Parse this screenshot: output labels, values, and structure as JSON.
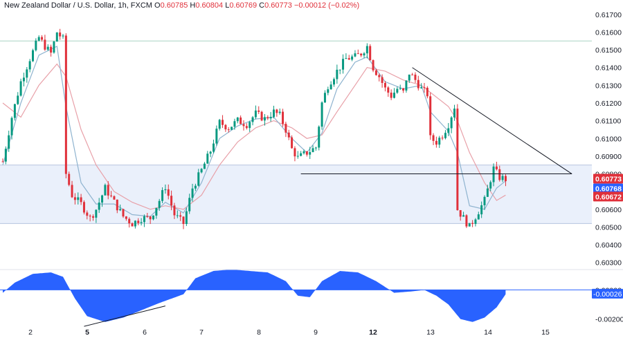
{
  "header": {
    "symbol": "New Zealand Dollar / U.S. Dollar, 1h, FXCM",
    "o_label": "O",
    "o": "0.60785",
    "h_label": "H",
    "h": "0.60804",
    "l_label": "L",
    "l": "0.60769",
    "c_label": "C",
    "c": "0.60773",
    "change": "−0.00012 (−0.02%)"
  },
  "colors": {
    "up": "#089981",
    "down": "#e0303a",
    "fast_ma": "#8eb3cf",
    "slow_ma": "#e8a0a8",
    "zone_fill": "#eaf0fb",
    "zone_line": "#b5c4de",
    "top_line": "#a9d3c3",
    "trend_line": "#131722",
    "osc_fill": "#2962ff",
    "axis_text": "#131722",
    "grid": "#e0e3eb"
  },
  "chart_data": [
    {
      "type": "line",
      "title": "New Zealand Dollar / U.S. Dollar, 1h, FXCM",
      "series_type": "candlestick",
      "x_ticks": [
        "2",
        "5",
        "6",
        "7",
        "8",
        "9",
        "12",
        "13",
        "14",
        "15"
      ],
      "x_ticks_bold": [
        "5",
        "12"
      ],
      "y_ticks": [
        "0.61700",
        "0.61600",
        "0.61500",
        "0.61400",
        "0.61300",
        "0.61200",
        "0.61100",
        "0.61000",
        "0.60900",
        "0.60800",
        "0.60600",
        "0.60500",
        "0.60400",
        "0.60300"
      ],
      "ylim": [
        0.6026,
        0.6175
      ],
      "price_path": [
        [
          0,
          0.6087
        ],
        [
          3,
          0.6112
        ],
        [
          6,
          0.6132
        ],
        [
          9,
          0.6145
        ],
        [
          12,
          0.6157
        ],
        [
          14,
          0.6152
        ],
        [
          16,
          0.6148
        ],
        [
          18,
          0.616
        ],
        [
          20,
          0.6156
        ],
        [
          21,
          0.608
        ],
        [
          23,
          0.6068
        ],
        [
          26,
          0.6063
        ],
        [
          29,
          0.6055
        ],
        [
          31,
          0.606
        ],
        [
          34,
          0.6072
        ],
        [
          37,
          0.6064
        ],
        [
          40,
          0.6056
        ],
        [
          43,
          0.6052
        ],
        [
          46,
          0.6055
        ],
        [
          49,
          0.6055
        ],
        [
          52,
          0.6065
        ],
        [
          54,
          0.6073
        ],
        [
          57,
          0.6057
        ],
        [
          60,
          0.6052
        ],
        [
          63,
          0.6072
        ],
        [
          66,
          0.6082
        ],
        [
          69,
          0.6093
        ],
        [
          72,
          0.6109
        ],
        [
          75,
          0.6106
        ],
        [
          78,
          0.611
        ],
        [
          81,
          0.6108
        ],
        [
          84,
          0.6114
        ],
        [
          87,
          0.6111
        ],
        [
          90,
          0.6115
        ],
        [
          92,
          0.6113
        ],
        [
          94,
          0.6105
        ],
        [
          96,
          0.6094
        ],
        [
          98,
          0.6089
        ],
        [
          101,
          0.6092
        ],
        [
          104,
          0.6095
        ],
        [
          106,
          0.612
        ],
        [
          108,
          0.613
        ],
        [
          111,
          0.6138
        ],
        [
          114,
          0.6145
        ],
        [
          117,
          0.6146
        ],
        [
          119,
          0.6148
        ],
        [
          121,
          0.6152
        ],
        [
          123,
          0.614
        ],
        [
          125,
          0.6135
        ],
        [
          127,
          0.6128
        ],
        [
          129,
          0.6124
        ],
        [
          131,
          0.6128
        ],
        [
          133,
          0.6126
        ],
        [
          135,
          0.6137
        ],
        [
          137,
          0.6133
        ],
        [
          139,
          0.6128
        ],
        [
          141,
          0.6125
        ],
        [
          142,
          0.61
        ],
        [
          144,
          0.6098
        ],
        [
          146,
          0.6102
        ],
        [
          148,
          0.6108
        ],
        [
          150,
          0.6118
        ],
        [
          151,
          0.606
        ],
        [
          153,
          0.6055
        ],
        [
          155,
          0.605
        ],
        [
          157,
          0.6056
        ],
        [
          160,
          0.6065
        ],
        [
          162,
          0.6077
        ],
        [
          163,
          0.6083
        ],
        [
          165,
          0.6078
        ],
        [
          167,
          0.6077
        ]
      ],
      "fast_ma_path": [
        [
          0,
          0.6085
        ],
        [
          6,
          0.612
        ],
        [
          12,
          0.6147
        ],
        [
          18,
          0.6152
        ],
        [
          21,
          0.6118
        ],
        [
          26,
          0.6075
        ],
        [
          31,
          0.6063
        ],
        [
          37,
          0.6063
        ],
        [
          43,
          0.6057
        ],
        [
          49,
          0.6056
        ],
        [
          54,
          0.6064
        ],
        [
          60,
          0.6058
        ],
        [
          66,
          0.6075
        ],
        [
          72,
          0.61
        ],
        [
          78,
          0.6107
        ],
        [
          84,
          0.6111
        ],
        [
          90,
          0.6112
        ],
        [
          96,
          0.61
        ],
        [
          101,
          0.6092
        ],
        [
          106,
          0.6103
        ],
        [
          111,
          0.6128
        ],
        [
          117,
          0.6143
        ],
        [
          121,
          0.6146
        ],
        [
          127,
          0.6132
        ],
        [
          133,
          0.6128
        ],
        [
          139,
          0.613
        ],
        [
          142,
          0.6115
        ],
        [
          148,
          0.6104
        ],
        [
          151,
          0.6092
        ],
        [
          155,
          0.6062
        ],
        [
          160,
          0.606
        ],
        [
          164,
          0.6072
        ],
        [
          167,
          0.6076
        ]
      ],
      "slow_ma_path": [
        [
          0,
          0.612
        ],
        [
          6,
          0.6112
        ],
        [
          12,
          0.613
        ],
        [
          18,
          0.6142
        ],
        [
          21,
          0.6135
        ],
        [
          26,
          0.6105
        ],
        [
          31,
          0.6085
        ],
        [
          37,
          0.607
        ],
        [
          43,
          0.6064
        ],
        [
          49,
          0.606
        ],
        [
          54,
          0.6062
        ],
        [
          60,
          0.606
        ],
        [
          66,
          0.6068
        ],
        [
          72,
          0.6085
        ],
        [
          78,
          0.6098
        ],
        [
          84,
          0.6106
        ],
        [
          90,
          0.611
        ],
        [
          96,
          0.6106
        ],
        [
          101,
          0.61
        ],
        [
          106,
          0.6102
        ],
        [
          111,
          0.6115
        ],
        [
          117,
          0.613
        ],
        [
          121,
          0.614
        ],
        [
          127,
          0.6138
        ],
        [
          133,
          0.6133
        ],
        [
          139,
          0.613
        ],
        [
          142,
          0.6126
        ],
        [
          148,
          0.6118
        ],
        [
          151,
          0.611
        ],
        [
          155,
          0.6092
        ],
        [
          160,
          0.6075
        ],
        [
          164,
          0.6065
        ],
        [
          167,
          0.6068
        ]
      ],
      "support_zone": [
        0.6052,
        0.6085
      ],
      "resistance_line": 0.6155,
      "horizontal_line": {
        "from_index": 99,
        "to_index": 189,
        "price": 0.608
      },
      "trend_line": {
        "from_index": 136,
        "from_price": 0.614,
        "to_index": 189,
        "to_price": 0.608
      },
      "price_labels": [
        {
          "text": "0.60773",
          "bg": "#e0303a",
          "price": 0.60773
        },
        {
          "text": "0.60768",
          "bg": "#2962ff",
          "price": 0.60718
        },
        {
          "text": "0.60672",
          "bg": "#e0303a",
          "price": 0.60672
        }
      ]
    },
    {
      "type": "area",
      "title": "",
      "y_ticks": [
        "0.00000",
        "-0.00200"
      ],
      "ylim": [
        -0.0024,
        0.0013
      ],
      "zero": 0.0,
      "path": [
        [
          0,
          -0.0002
        ],
        [
          4,
          0.0005
        ],
        [
          10,
          0.0011
        ],
        [
          16,
          0.0012
        ],
        [
          20,
          0.0009
        ],
        [
          24,
          -0.0006
        ],
        [
          28,
          -0.0018
        ],
        [
          34,
          -0.0022
        ],
        [
          40,
          -0.0019
        ],
        [
          46,
          -0.0014
        ],
        [
          52,
          -0.0009
        ],
        [
          56,
          -0.0006
        ],
        [
          60,
          -0.0003
        ],
        [
          64,
          0.0008
        ],
        [
          70,
          0.0013
        ],
        [
          76,
          0.0014
        ],
        [
          82,
          0.0013
        ],
        [
          88,
          0.0012
        ],
        [
          94,
          0.0006
        ],
        [
          98,
          -0.0004
        ],
        [
          102,
          -0.0005
        ],
        [
          106,
          0.0006
        ],
        [
          112,
          0.0013
        ],
        [
          118,
          0.0012
        ],
        [
          124,
          0.0006
        ],
        [
          130,
          -0.0002
        ],
        [
          136,
          -0.0001
        ],
        [
          140,
          0.0
        ],
        [
          144,
          -0.0004
        ],
        [
          148,
          -0.001
        ],
        [
          152,
          -0.002
        ],
        [
          156,
          -0.0022
        ],
        [
          160,
          -0.0019
        ],
        [
          164,
          -0.0012
        ],
        [
          167,
          -0.0003
        ]
      ],
      "value_label": {
        "text": "-0.00026",
        "value": -0.00026
      },
      "diagonal_line": {
        "from_index": 27,
        "from_value": -0.0025,
        "to_index": 54,
        "to_value": -0.0011
      }
    }
  ]
}
